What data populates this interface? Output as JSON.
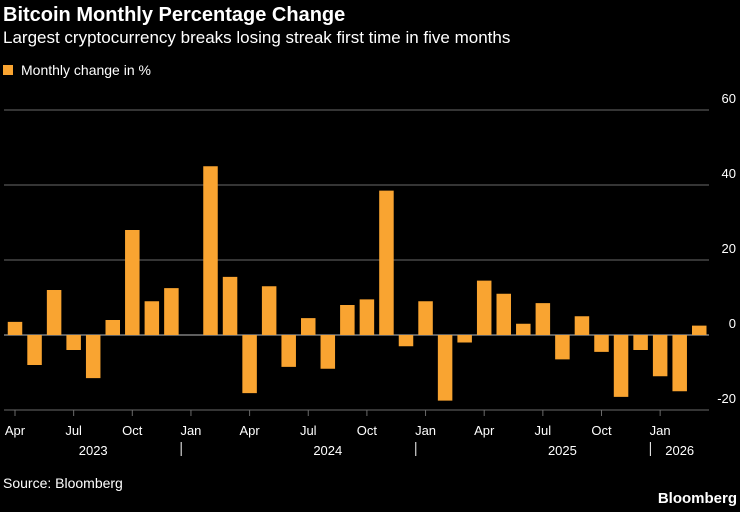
{
  "title": "Bitcoin Monthly Percentage Change",
  "subtitle": "Largest cryptocurrency breaks losing streak first time in five months",
  "source": "Source: Bloomberg",
  "brand": "Bloomberg",
  "colors": {
    "bar": "#f9a431",
    "background": "#000000",
    "grid": "#6a6a6a",
    "text": "#ffffff",
    "zero_line": "#bdbdbd"
  },
  "chart_data": {
    "type": "bar",
    "title": "Bitcoin Monthly Percentage Change",
    "subtitle": "Largest cryptocurrency breaks losing streak first time in five months",
    "series": [
      {
        "name": "Monthly change in %",
        "values": [
          3.5,
          -8,
          12,
          -4,
          -11.5,
          4,
          28,
          9,
          12.5,
          0,
          45,
          15.5,
          -15.5,
          13,
          -8.5,
          4.5,
          -9,
          8,
          9.5,
          38.5,
          -3,
          9,
          -17.5,
          -2,
          14.5,
          11,
          3,
          8.5,
          -6.5,
          5,
          -4.5,
          -16.5,
          -4,
          -11,
          -15,
          2.5
        ]
      }
    ],
    "categories": [
      "Apr 2023",
      "May 2023",
      "Jun 2023",
      "Jul 2023",
      "Aug 2023",
      "Sep 2023",
      "Oct 2023",
      "Nov 2023",
      "Dec 2023",
      "Jan 2024",
      "Feb 2024",
      "Mar 2024",
      "Apr 2024",
      "May 2024",
      "Jun 2024",
      "Jul 2024",
      "Aug 2024",
      "Sep 2024",
      "Oct 2024",
      "Nov 2024",
      "Dec 2024",
      "Jan 2025",
      "Feb 2025",
      "Mar 2025",
      "Apr 2025",
      "May 2025",
      "Jun 2025",
      "Jul 2025",
      "Aug 2025",
      "Sep 2025",
      "Oct 2025",
      "Nov 2025",
      "Dec 2025",
      "Jan 2026",
      "Feb 2026",
      "Mar 2026"
    ],
    "x_ticks": [
      {
        "label": "Apr",
        "index": 0
      },
      {
        "label": "Jul",
        "index": 3
      },
      {
        "label": "Oct",
        "index": 6
      },
      {
        "label": "Jan",
        "index": 9
      },
      {
        "label": "Apr",
        "index": 12
      },
      {
        "label": "Jul",
        "index": 15
      },
      {
        "label": "Oct",
        "index": 18
      },
      {
        "label": "Jan",
        "index": 21
      },
      {
        "label": "Apr",
        "index": 24
      },
      {
        "label": "Jul",
        "index": 27
      },
      {
        "label": "Oct",
        "index": 30
      },
      {
        "label": "Jan",
        "index": 33
      }
    ],
    "year_labels": [
      {
        "label": "2023",
        "index": 4
      },
      {
        "label": "2024",
        "index": 16
      },
      {
        "label": "2025",
        "index": 28
      },
      {
        "label": "2026",
        "index": 34
      }
    ],
    "year_separators": [
      8.5,
      20.5,
      32.5
    ],
    "y_ticks": [
      -20,
      0,
      20,
      40,
      60
    ],
    "ylim": [
      -20,
      60
    ],
    "xlabel": "",
    "ylabel": "",
    "grid": true,
    "y_axis_side": "right",
    "legend_position": "top-left"
  }
}
